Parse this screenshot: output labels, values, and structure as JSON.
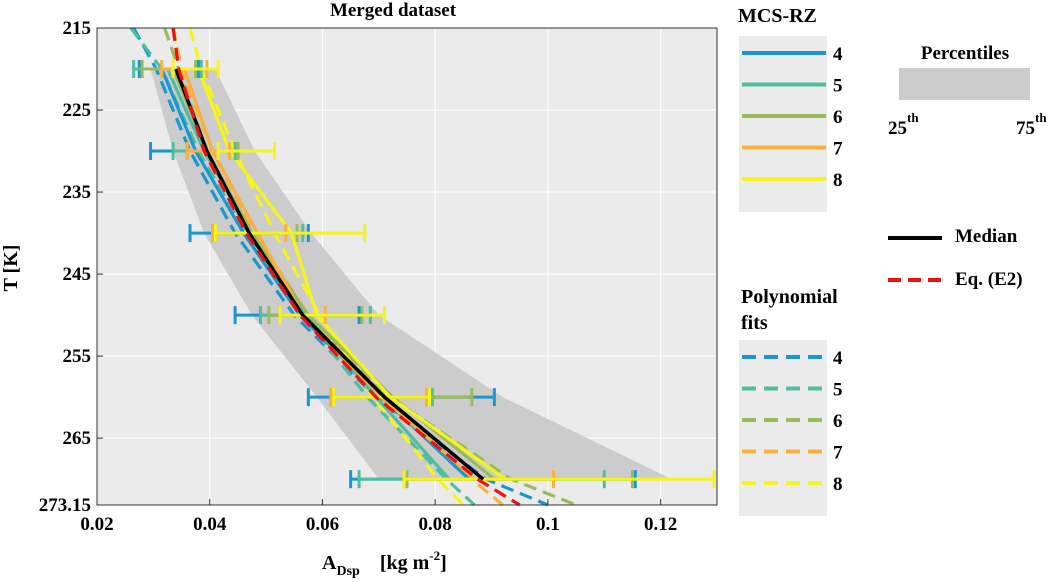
{
  "chart_data": {
    "type": "line",
    "title": "Merged dataset",
    "xlabel_main": "A",
    "xlabel_sub": "Dsp",
    "xlabel_units": "[kg m",
    "xlabel_exp": "-2",
    "xlabel_close": "]",
    "ylabel": "T [K]",
    "xlim": [
      0.02,
      0.13
    ],
    "ylim": [
      215,
      273.15
    ],
    "x_ticks": [
      0.02,
      0.04,
      0.06,
      0.08,
      0.1,
      0.12
    ],
    "x_tick_labels": [
      "0.02",
      "0.04",
      "0.06",
      "0.08",
      "0.1",
      "0.12"
    ],
    "y_ticks": [
      215,
      225,
      235,
      245,
      255,
      265,
      273.15
    ],
    "y_tick_labels": [
      "215",
      "225",
      "235",
      "245",
      "255",
      "265",
      "273.15"
    ],
    "y_reversed": true,
    "grid": true,
    "colors": {
      "4": "#1b96cf",
      "5": "#4fbda2",
      "6": "#9abb5d",
      "7": "#f9b03f",
      "8": "#f5f51b",
      "median": "#000000",
      "eq": "#ee1111",
      "band": "#cccccc",
      "axes_bg": "#ebebeb"
    },
    "percentile_band": {
      "name": "Percentiles",
      "low_label": "25",
      "high_label": "75",
      "suffix": "th",
      "T": [
        220,
        230,
        240,
        250,
        260,
        270
      ],
      "p25": [
        0.0295,
        0.0335,
        0.039,
        0.0475,
        0.059,
        0.07
      ],
      "p75": [
        0.041,
        0.048,
        0.058,
        0.07,
        0.092,
        0.122
      ]
    },
    "median": {
      "name": "Median",
      "T": [
        220,
        230,
        240,
        250,
        260,
        270
      ],
      "x": [
        0.034,
        0.0395,
        0.047,
        0.0565,
        0.071,
        0.0885
      ]
    },
    "eq_fit": {
      "name": "Eq. (E2)",
      "T": [
        215,
        220,
        230,
        240,
        250,
        260,
        270,
        273.15
      ],
      "x": [
        0.0335,
        0.0345,
        0.039,
        0.0465,
        0.056,
        0.0695,
        0.0875,
        0.095
      ]
    },
    "mcs_legend_title": "MCS-RZ",
    "poly_legend_title_line1": "Polynomial",
    "poly_legend_title_line2": "fits",
    "series": [
      {
        "name": "4",
        "T": [
          220,
          230,
          240,
          250,
          260,
          270
        ],
        "x": [
          0.0315,
          0.0375,
          0.046,
          0.056,
          0.0705,
          0.086
        ],
        "err_lo": [
          0.0275,
          0.0295,
          0.0365,
          0.0445,
          0.0575,
          0.065
        ],
        "err_hi": [
          0.038,
          0.045,
          0.0575,
          0.0665,
          0.0905,
          0.1155
        ],
        "fit_T": [
          215,
          220,
          230,
          240,
          250,
          260,
          270,
          273.15
        ],
        "fit_x": [
          0.0265,
          0.0305,
          0.0365,
          0.0445,
          0.055,
          0.0695,
          0.089,
          0.1
        ]
      },
      {
        "name": "5",
        "T": [
          220,
          230,
          240,
          250,
          260,
          270
        ],
        "x": [
          0.0325,
          0.039,
          0.0475,
          0.057,
          0.0695,
          0.0825
        ],
        "err_lo": [
          0.0265,
          0.0335,
          0.0405,
          0.049,
          0.0615,
          0.0665
        ],
        "err_hi": [
          0.0385,
          0.0445,
          0.0565,
          0.0685,
          0.0795,
          0.11
        ],
        "fit_T": [
          215,
          220,
          230,
          240,
          250,
          260,
          270,
          273.15
        ],
        "fit_x": [
          0.026,
          0.0315,
          0.038,
          0.0465,
          0.0565,
          0.068,
          0.082,
          0.087
        ]
      },
      {
        "name": "6",
        "T": [
          220,
          230,
          240,
          250,
          260,
          270
        ],
        "x": [
          0.0335,
          0.0395,
          0.0475,
          0.0575,
          0.0725,
          0.0905
        ],
        "err_lo": [
          0.028,
          0.036,
          0.041,
          0.0505,
          0.062,
          0.075
        ],
        "err_hi": [
          0.0375,
          0.045,
          0.0555,
          0.067,
          0.0865,
          0.115
        ],
        "fit_T": [
          215,
          220,
          230,
          240,
          250,
          260,
          270,
          273.15
        ],
        "fit_x": [
          0.032,
          0.0345,
          0.0395,
          0.047,
          0.057,
          0.072,
          0.0935,
          0.105
        ]
      },
      {
        "name": "7",
        "T": [
          220,
          230,
          240,
          250,
          260,
          270
        ],
        "x": [
          0.0355,
          0.0405,
          0.0485,
          0.0565,
          0.0705,
          0.087
        ],
        "err_lo": [
          0.0315,
          0.036,
          0.0405,
          0.0525,
          0.0615,
          0.0745
        ],
        "err_hi": [
          0.0395,
          0.0435,
          0.0535,
          0.0605,
          0.0785,
          0.101
        ],
        "fit_T": [
          215,
          220,
          230,
          240,
          250,
          260,
          270,
          273.15
        ],
        "fit_x": [
          0.0335,
          0.035,
          0.0405,
          0.048,
          0.0575,
          0.0705,
          0.0865,
          0.092
        ]
      },
      {
        "name": "8",
        "T": [
          220,
          230,
          240,
          250,
          260,
          270
        ],
        "x": [
          0.038,
          0.0435,
          0.0545,
          0.059,
          0.072,
          0.0925
        ],
        "err_lo": [
          0.0335,
          0.0415,
          0.041,
          0.0525,
          0.062,
          0.0745
        ],
        "err_hi": [
          0.0415,
          0.0515,
          0.0675,
          0.071,
          0.079,
          0.1295
        ],
        "fit_T": [
          215,
          220,
          230,
          240,
          250,
          260,
          270,
          273.15
        ],
        "fit_x": [
          0.0365,
          0.0385,
          0.0445,
          0.0515,
          0.0595,
          0.069,
          0.0805,
          0.085
        ]
      }
    ]
  }
}
